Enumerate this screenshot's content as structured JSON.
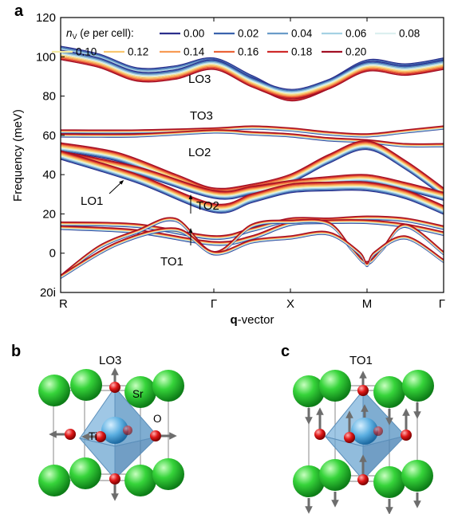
{
  "panels": {
    "a": "a",
    "b": "b",
    "c": "c"
  },
  "chart_data": {
    "type": "line",
    "xlabel_bold": "q",
    "xlabel_rest": "-vector",
    "ylabel": "Frequency (meV)",
    "ylim": [
      -20,
      120
    ],
    "yticks": [
      {
        "value": 120,
        "label": "120"
      },
      {
        "value": 100,
        "label": "100"
      },
      {
        "value": 80,
        "label": "80"
      },
      {
        "value": 60,
        "label": "60"
      },
      {
        "value": 40,
        "label": "40"
      },
      {
        "value": 20,
        "label": "20"
      },
      {
        "value": 0,
        "label": "0"
      },
      {
        "value": -20,
        "label": "20i"
      }
    ],
    "xticks": [
      {
        "pos": 0,
        "label": "R"
      },
      {
        "pos": 0.4,
        "label": "Γ"
      },
      {
        "pos": 0.6,
        "label": "X"
      },
      {
        "pos": 0.8,
        "label": "M"
      },
      {
        "pos": 1.0,
        "label": "Γ"
      }
    ],
    "legend": {
      "placement": "top",
      "title_nv": "n",
      "title_sub": "V",
      "title_paren_open": " (",
      "title_e": "e",
      "title_rest": " per cell):",
      "entries": [
        "0.00",
        "0.02",
        "0.04",
        "0.06",
        "0.08",
        "0.10",
        "0.12",
        "0.14",
        "0.16",
        "0.18",
        "0.20"
      ]
    },
    "series_colors": [
      "#2b2f8c",
      "#3b63ad",
      "#6a9cc9",
      "#a5d1e3",
      "#dcefef",
      "#f4eaa0",
      "#f9c66f",
      "#f79b55",
      "#ea6338",
      "#cf2a2a",
      "#a20f24"
    ],
    "annotations": [
      "LO3",
      "TO3",
      "LO2",
      "LO1",
      "TO2",
      "TO1"
    ],
    "bands": [
      [
        [
          0,
          103
        ],
        [
          0.1,
          99
        ],
        [
          0.2,
          92
        ],
        [
          0.3,
          93
        ],
        [
          0.4,
          97
        ],
        [
          0.5,
          88
        ],
        [
          0.6,
          80
        ],
        [
          0.7,
          86
        ],
        [
          0.8,
          96
        ],
        [
          0.9,
          94
        ],
        [
          1.0,
          97
        ]
      ],
      [
        [
          0,
          101
        ],
        [
          0.1,
          97
        ],
        [
          0.2,
          90
        ],
        [
          0.3,
          91
        ],
        [
          0.4,
          96
        ],
        [
          0.5,
          87
        ],
        [
          0.6,
          81
        ],
        [
          0.7,
          86
        ],
        [
          0.8,
          95
        ],
        [
          0.9,
          93
        ],
        [
          1.0,
          96
        ]
      ],
      [
        [
          0,
          62
        ],
        [
          0.2,
          62
        ],
        [
          0.4,
          63
        ],
        [
          0.5,
          64
        ],
        [
          0.6,
          63
        ],
        [
          0.7,
          61
        ],
        [
          0.8,
          60
        ],
        [
          0.9,
          62
        ],
        [
          1.0,
          64
        ]
      ],
      [
        [
          0,
          60
        ],
        [
          0.2,
          60
        ],
        [
          0.4,
          62
        ],
        [
          0.5,
          61
        ],
        [
          0.6,
          60
        ],
        [
          0.7,
          58
        ],
        [
          0.8,
          57
        ],
        [
          0.9,
          55
        ],
        [
          1.0,
          55
        ]
      ],
      [
        [
          0,
          54
        ],
        [
          0.15,
          49
        ],
        [
          0.3,
          38
        ],
        [
          0.4,
          31
        ],
        [
          0.5,
          33
        ],
        [
          0.6,
          38
        ],
        [
          0.7,
          48
        ],
        [
          0.8,
          55
        ],
        [
          0.9,
          45
        ],
        [
          1.0,
          31
        ]
      ],
      [
        [
          0,
          50
        ],
        [
          0.2,
          42
        ],
        [
          0.4,
          30
        ],
        [
          0.5,
          32
        ],
        [
          0.6,
          35
        ],
        [
          0.7,
          37
        ],
        [
          0.8,
          38
        ],
        [
          0.9,
          34
        ],
        [
          1.0,
          29
        ]
      ],
      [
        [
          0,
          50
        ],
        [
          0.2,
          38
        ],
        [
          0.4,
          23
        ],
        [
          0.5,
          28
        ],
        [
          0.6,
          33
        ],
        [
          0.7,
          34
        ],
        [
          0.8,
          34
        ],
        [
          0.9,
          30
        ],
        [
          1.0,
          22
        ]
      ],
      [
        [
          0,
          15
        ],
        [
          0.2,
          14
        ],
        [
          0.4,
          8
        ],
        [
          0.5,
          12
        ],
        [
          0.6,
          17
        ],
        [
          0.7,
          17
        ],
        [
          0.8,
          18
        ],
        [
          0.9,
          17
        ],
        [
          1.0,
          13
        ]
      ],
      [
        [
          0,
          13
        ],
        [
          0.2,
          11
        ],
        [
          0.4,
          5
        ],
        [
          0.5,
          8
        ],
        [
          0.6,
          15
        ],
        [
          0.7,
          16
        ],
        [
          0.8,
          16
        ],
        [
          0.9,
          14
        ],
        [
          1.0,
          10
        ]
      ],
      [
        [
          0,
          -12
        ],
        [
          0.1,
          3
        ],
        [
          0.2,
          11
        ],
        [
          0.3,
          17
        ],
        [
          0.4,
          0
        ],
        [
          0.5,
          14
        ],
        [
          0.6,
          16
        ],
        [
          0.7,
          15
        ],
        [
          0.76,
          2
        ],
        [
          0.8,
          -5
        ],
        [
          0.84,
          2
        ],
        [
          0.9,
          14
        ],
        [
          1.0,
          0
        ]
      ],
      [
        [
          0,
          -12
        ],
        [
          0.15,
          5
        ],
        [
          0.3,
          12
        ],
        [
          0.4,
          0
        ],
        [
          0.5,
          6
        ],
        [
          0.6,
          8
        ],
        [
          0.7,
          10
        ],
        [
          0.78,
          0
        ],
        [
          0.8,
          -6
        ],
        [
          0.82,
          0
        ],
        [
          0.9,
          8
        ],
        [
          1.0,
          -4
        ]
      ]
    ]
  },
  "structures": {
    "b": {
      "mode_label": "LO3",
      "atom_labels": {
        "sr": "Sr",
        "o": "O",
        "ti": "Ti"
      }
    },
    "c": {
      "mode_label": "TO1"
    }
  }
}
